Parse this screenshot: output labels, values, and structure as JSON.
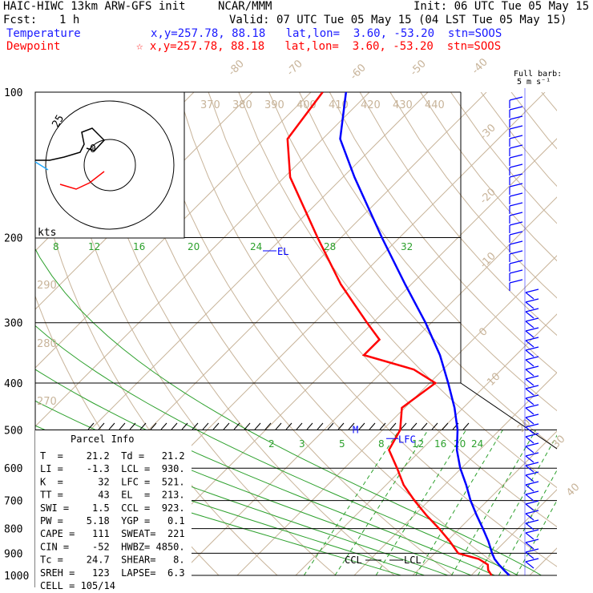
{
  "header": {
    "model": "HAIC-HIWC 13km ARW-GFS init",
    "org": "NCAR/MMM",
    "init": "Init: 06 UTC Tue 05 May 15",
    "fcst_label": "Fcst:",
    "fcst_value": "1 h",
    "valid": "Valid: 07 UTC Tue 05 May 15 (04 LST Tue 05 May 15)",
    "temp_label": "Temperature",
    "temp_info": "x,y=257.78, 88.18   lat,lon=  3.60, -53.20  stn=SOOS",
    "dew_label": "Dewpoint",
    "dew_info": "☆ x,y=257.78, 88.18   lat,lon=  3.60, -53.20  stn=SOOS"
  },
  "barb_legend": {
    "line1": "Full barb:",
    "line2": "5 m s⁻¹"
  },
  "hodograph": {
    "ring_label": "25",
    "units": "kts",
    "inner_label": "0"
  },
  "chart_data": {
    "type": "line",
    "title": "Skew-T log-P sounding",
    "pressure_levels": [
      100,
      200,
      300,
      400,
      500,
      600,
      700,
      800,
      900,
      1000
    ],
    "isotherm_labels": [
      "-80",
      "-70",
      "-60",
      "-50",
      "-40",
      "-30",
      "-20",
      "-10",
      "0",
      "10",
      "20",
      "30",
      "40"
    ],
    "theta_labels": [
      "370",
      "380",
      "390",
      "400",
      "410",
      "420",
      "430",
      "440",
      "290",
      "280",
      "270"
    ],
    "mixing_ratio_labels": [
      "8",
      "12",
      "16",
      "20",
      "24",
      "28",
      "32"
    ],
    "mixing_ratio_low_labels": [
      "2",
      "3",
      "5",
      "8",
      "12",
      "16",
      "20",
      "24"
    ],
    "series": [
      {
        "name": "Temperature",
        "color": "#0000ff",
        "p": [
          1000,
          975,
          950,
          925,
          900,
          850,
          800,
          750,
          700,
          650,
          600,
          550,
          500,
          450,
          400,
          350,
          300,
          250,
          200,
          150,
          125,
          100
        ],
        "t": [
          26.5,
          24.7,
          22.9,
          21.2,
          19.8,
          17.1,
          14.0,
          10.6,
          7.1,
          3.7,
          -0.2,
          -3.9,
          -7.2,
          -11.5,
          -16.8,
          -23.0,
          -31.0,
          -41.0,
          -53.0,
          -68.0,
          -77.0,
          -84.0
        ]
      },
      {
        "name": "Dewpoint",
        "color": "#ff0000",
        "p": [
          1000,
          975,
          950,
          925,
          900,
          850,
          800,
          750,
          700,
          650,
          600,
          550,
          500,
          450,
          400,
          375,
          350,
          325,
          300,
          250,
          200,
          150,
          125,
          100
        ],
        "t": [
          23.5,
          22.0,
          21.0,
          18.5,
          14.0,
          10.5,
          6.5,
          2.0,
          -2.5,
          -7.0,
          -11.0,
          -15.5,
          -17.0,
          -20.5,
          -19.0,
          -25.0,
          -36.0,
          -36.0,
          -41.0,
          -52.0,
          -64.0,
          -79.0,
          -86.0,
          -88.0
        ]
      }
    ],
    "annotations": [
      {
        "label": "EL",
        "p": 213
      },
      {
        "label": "LFC",
        "p": 521
      },
      {
        "label": "CCL",
        "p": 923
      },
      {
        "label": "LCL",
        "p": 930
      },
      {
        "label": "M",
        "p": 500
      }
    ]
  },
  "parcel_info": {
    "title": "Parcel Info",
    "rows": [
      "T  =    21.2  Td =   21.2",
      "LI =    -1.3  LCL =  930.",
      "K  =      32  LFC =  521.",
      "TT =      43  EL  =  213.",
      "SWI =    1.5  CCL =  923.",
      "PW =    5.18  YGP =   0.1",
      "CAPE =   111  SWEAT=  221",
      "CIN =    -52  HWBZ= 4850.",
      "Tc =    24.7  SHEAR=   8.",
      "SREH =   123  LAPSE=  6.3",
      "CELL = 105/14"
    ]
  }
}
